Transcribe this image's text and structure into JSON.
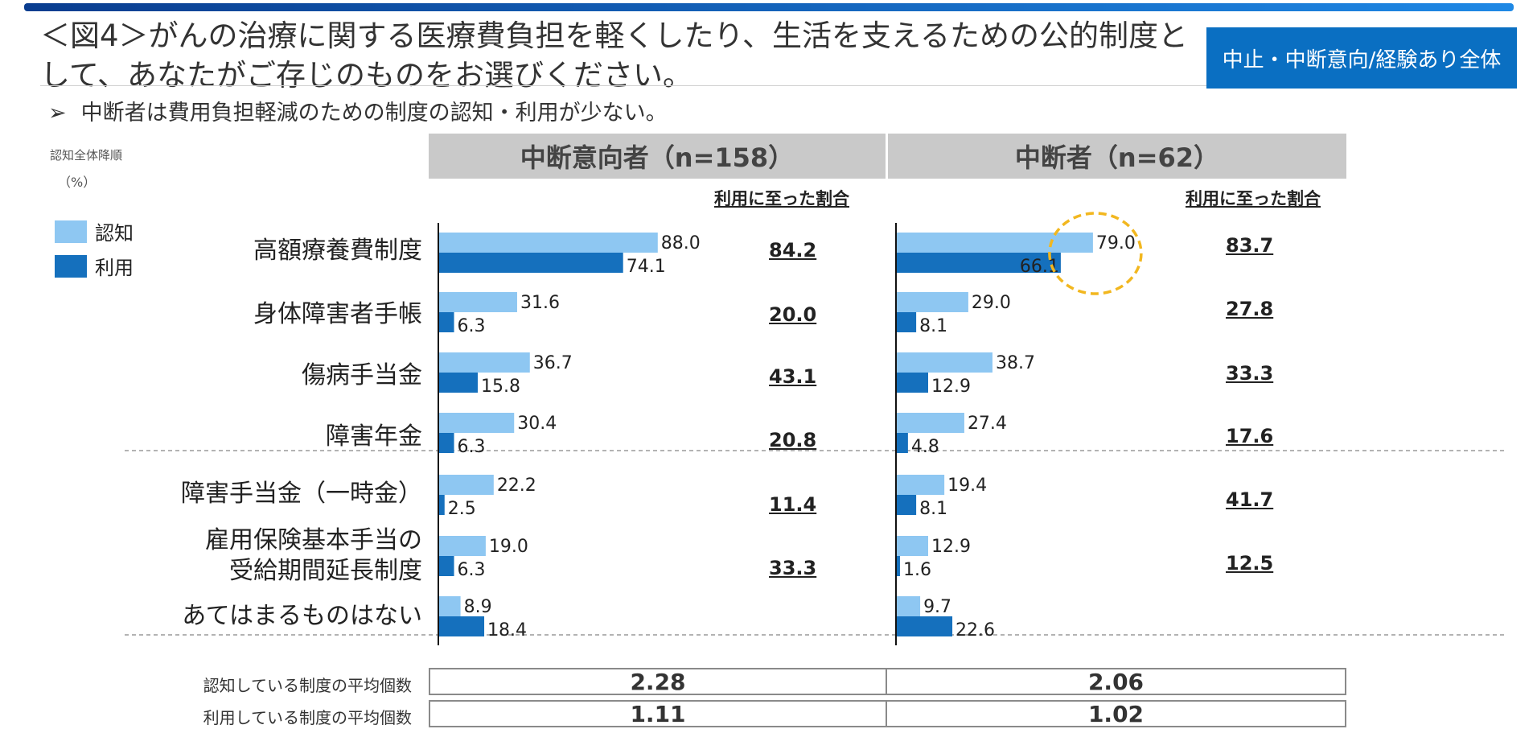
{
  "header": {
    "title": "＜図4＞がんの治療に関する医療費負担を軽くしたり、生活を支えるための公的制度として、あなたがご存じのものをお選びください。",
    "badge": "中止・中断意向/経験あり全体",
    "subtitle_arrow": "➢",
    "subtitle": "中断者は費用負担軽減のための制度の認知・利用が少ない。",
    "sort_note": "認知全体降順",
    "unit_note": "（%）"
  },
  "legend": {
    "recognition": "認知",
    "usage": "利用"
  },
  "colors": {
    "recognition": "#8ec7f2",
    "usage": "#1570bd",
    "header_bg": "#c9c9c9",
    "badge_bg": "#0a6fc2",
    "highlight": "#f2b71f"
  },
  "chart_data": {
    "type": "bar",
    "orientation": "horizontal",
    "categories": [
      "高額療養費制度",
      "身体障害者手帳",
      "傷病手当金",
      "障害年金",
      "障害手当金（一時金）",
      "雇用保険基本手当の受給期間延長制度",
      "あてはまるものはない"
    ],
    "panels": [
      {
        "title": "中断意向者（n=158）",
        "rate_header": "利用に至った割合",
        "series": [
          {
            "name": "認知",
            "values": [
              88.0,
              31.6,
              36.7,
              30.4,
              22.2,
              19.0,
              8.9
            ]
          },
          {
            "name": "利用",
            "values": [
              74.1,
              6.3,
              15.8,
              6.3,
              2.5,
              6.3,
              18.4
            ]
          }
        ],
        "rates": [
          "84.2",
          "20.0",
          "43.1",
          "20.8",
          "11.4",
          "33.3"
        ],
        "avg_recognized": "2.28",
        "avg_used": "1.11"
      },
      {
        "title": "中断者（n=62）",
        "rate_header": "利用に至った割合",
        "series": [
          {
            "name": "認知",
            "values": [
              79.0,
              29.0,
              38.7,
              27.4,
              19.4,
              12.9,
              9.7
            ]
          },
          {
            "name": "利用",
            "values": [
              66.1,
              8.1,
              12.9,
              4.8,
              8.1,
              1.6,
              22.6
            ]
          }
        ],
        "rates": [
          "83.7",
          "27.8",
          "33.3",
          "17.6",
          "41.7",
          "12.5"
        ],
        "avg_recognized": "2.06",
        "avg_used": "1.02"
      }
    ],
    "xlim": [
      0,
      100
    ],
    "value_format": "one decimal",
    "highlight": {
      "panel": 1,
      "category": 0
    }
  },
  "summary_labels": {
    "avg_recognized": "認知している制度の平均個数",
    "avg_used": "利用している制度の平均個数"
  }
}
